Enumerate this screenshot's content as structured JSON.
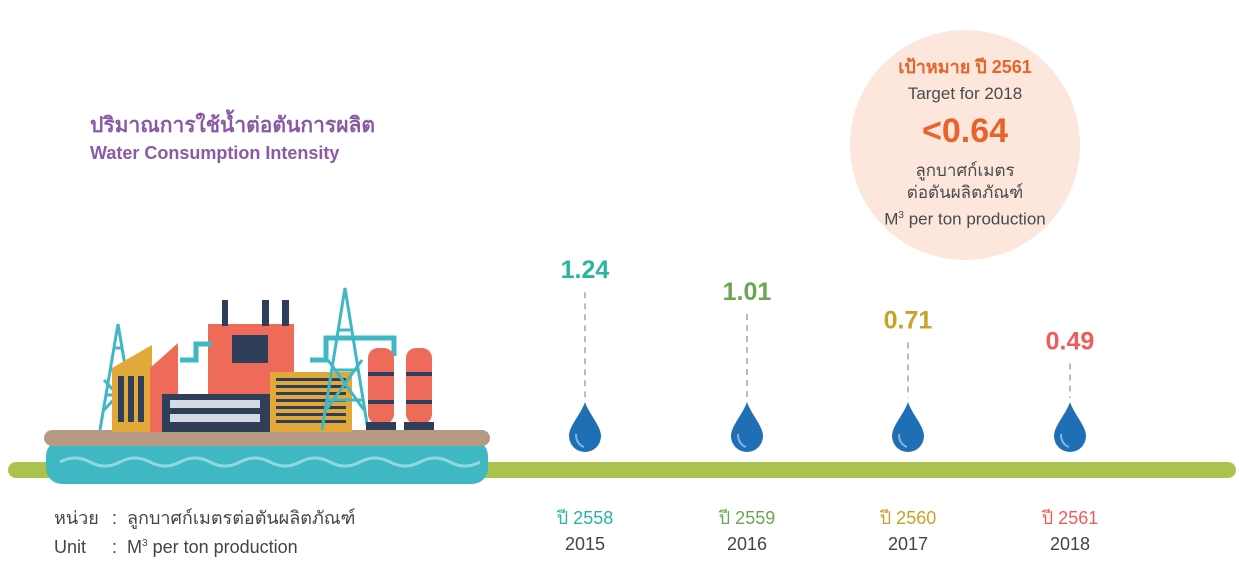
{
  "title": {
    "thai": "ปริมาณการใช้น้ำต่อตันการผลิต",
    "english": "Water Consumption Intensity"
  },
  "target": {
    "thai_label": "เป้าหมาย ปี 2561",
    "english_label": "Target for 2018",
    "value": "<0.64",
    "unit_thai_line1": "ลูกบาศก์เมตร",
    "unit_thai_line2": "ต่อตันผลิตภัณฑ์",
    "unit_english_base": "M",
    "unit_english_sup": "3",
    "unit_english_rest": " per ton production"
  },
  "unit_legend": {
    "thai_key": "หน่วย",
    "thai_value": "ลูกบาศก์เมตรต่อตันผลิตภัณฑ์",
    "english_key": "Unit",
    "english_base": "M",
    "english_sup": "3",
    "english_rest": " per ton production",
    "separator": ":"
  },
  "colors": {
    "title": "#8a5aa6",
    "target_accent": "#e8632a",
    "target_bg": "#fde7dc",
    "ground": "#a9c34d",
    "drop": "#1f6fb5"
  },
  "chart_data": {
    "type": "bar",
    "categories": [
      "2015",
      "2016",
      "2017",
      "2018"
    ],
    "categories_be": [
      "ปี 2558",
      "ปี 2559",
      "ปี 2560",
      "ปี 2561"
    ],
    "values": [
      1.24,
      1.01,
      0.71,
      0.49
    ],
    "value_labels": [
      "1.24",
      "1.01",
      "0.71",
      "0.49"
    ],
    "colors": [
      "#2bb3a3",
      "#6aa84f",
      "#c9a227",
      "#ef5b5b"
    ],
    "ylabel": "",
    "xlabel": ""
  }
}
